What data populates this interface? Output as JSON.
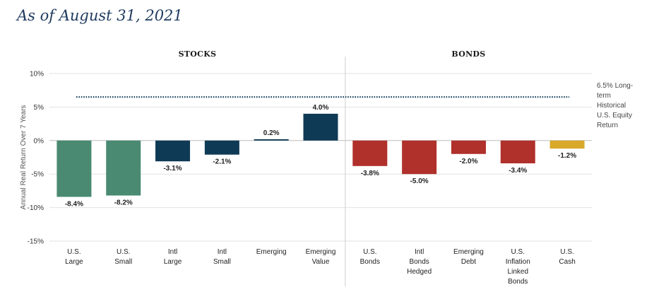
{
  "header": {
    "title": "As of August 31, 2021"
  },
  "chart_data": {
    "type": "bar",
    "title": "As of August 31, 2021",
    "ylabel": "Annual Real Return Over 7 Years",
    "xlabel": "",
    "ylim": [
      -15,
      10
    ],
    "yticks": [
      10,
      5,
      0,
      -5,
      -10,
      -15
    ],
    "ytick_labels": [
      "10%",
      "5%",
      "0%",
      "-5%",
      "-10%",
      "-15%"
    ],
    "grid": true,
    "groups": [
      {
        "name": "STOCKS",
        "start": 0,
        "end": 5
      },
      {
        "name": "BONDS",
        "start": 6,
        "end": 10
      }
    ],
    "categories": [
      [
        "U.S.",
        "Large"
      ],
      [
        "U.S.",
        "Small"
      ],
      [
        "Intl",
        "Large"
      ],
      [
        "Intl",
        "Small"
      ],
      [
        "Emerging"
      ],
      [
        "Emerging",
        "Value"
      ],
      [
        "U.S.",
        "Bonds"
      ],
      [
        "Intl",
        "Bonds",
        "Hedged"
      ],
      [
        "Emerging",
        "Debt"
      ],
      [
        "U.S.",
        "Inflation",
        "Linked",
        "Bonds"
      ],
      [
        "U.S.",
        "Cash"
      ]
    ],
    "values": [
      -8.4,
      -8.2,
      -3.1,
      -2.1,
      0.2,
      4.0,
      -3.8,
      -5.0,
      -2.0,
      -3.4,
      -1.2
    ],
    "value_labels": [
      "-8.4%",
      "-8.2%",
      "-3.1%",
      "-2.1%",
      "0.2%",
      "4.0%",
      "-3.8%",
      "-5.0%",
      "-2.0%",
      "-3.4%",
      "-1.2%"
    ],
    "colors": [
      "#4a8a72",
      "#4a8a72",
      "#0f3a56",
      "#0f3a56",
      "#0f3a56",
      "#0f3a56",
      "#b0302b",
      "#b0302b",
      "#b0302b",
      "#b0302b",
      "#d9a92a"
    ],
    "reference_line": {
      "value": 6.5,
      "style": "dotted",
      "label": [
        "6.5% Long-",
        "term",
        "Historical",
        "U.S. Equity",
        "Return"
      ]
    }
  }
}
